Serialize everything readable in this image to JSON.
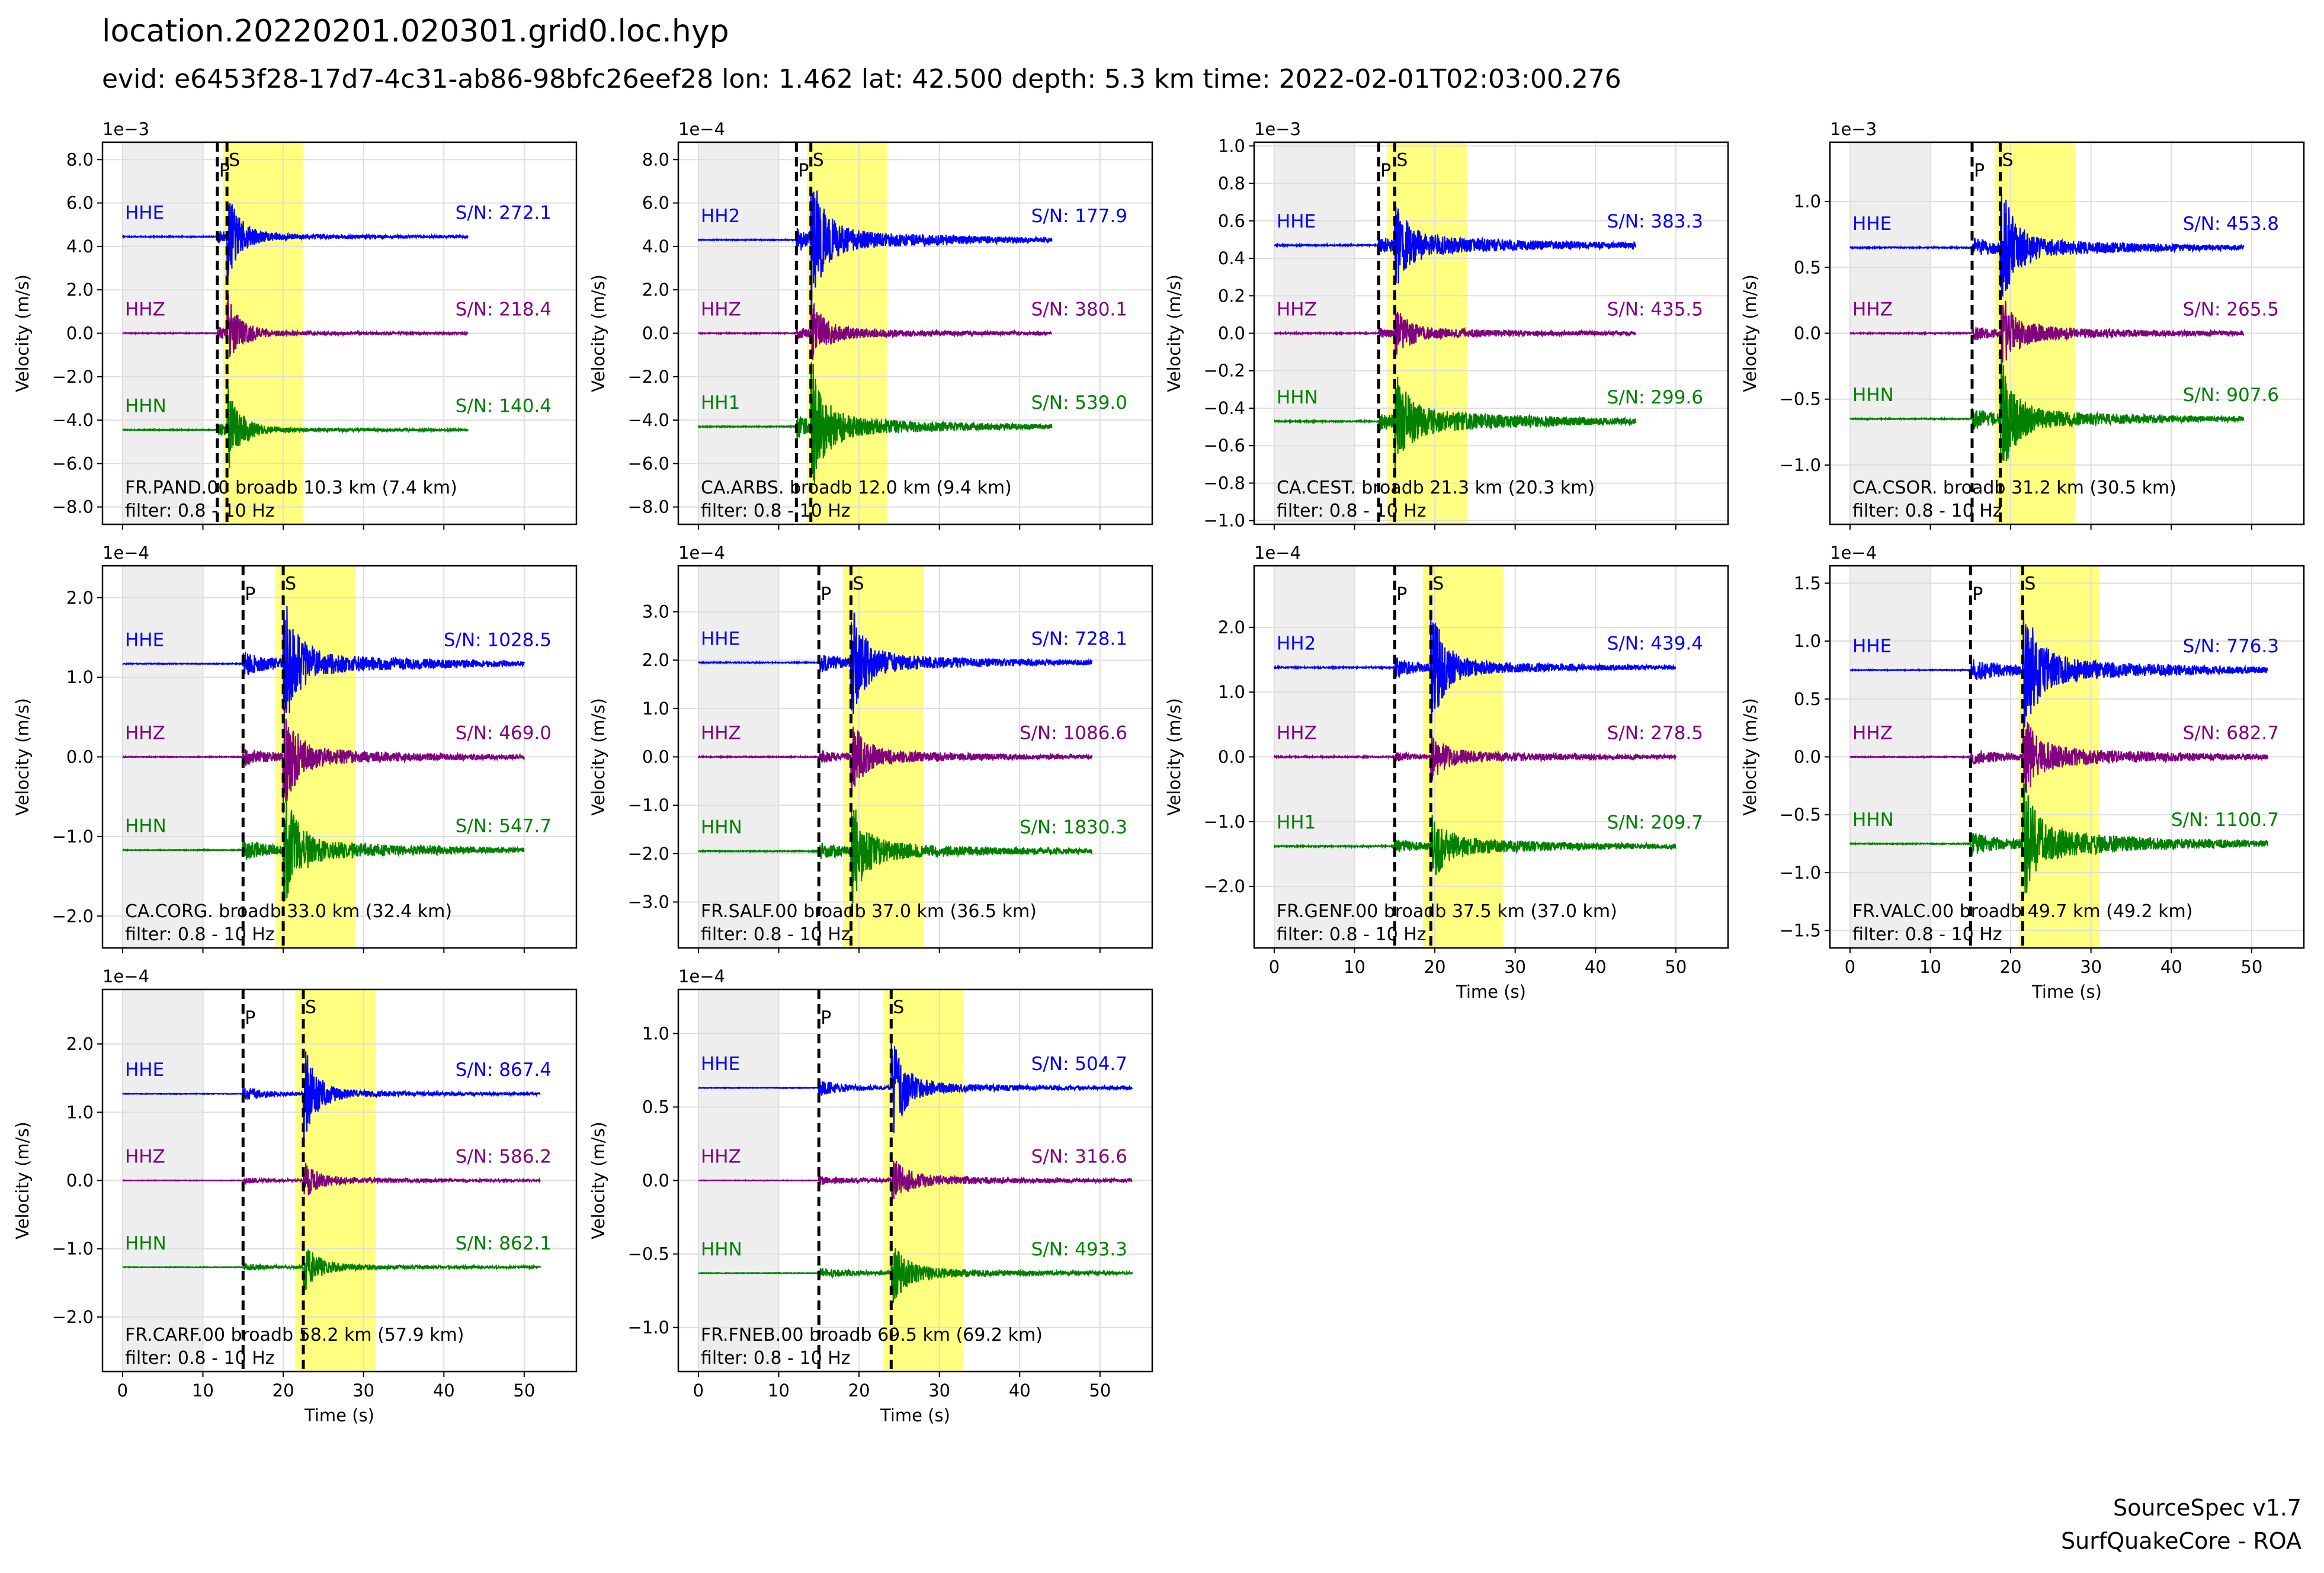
{
  "title": "location.20220201.020301.grid0.loc.hyp",
  "subtitle": "evid: e6453f28-17d7-4c31-ab86-98bfc26eef28 lon: 1.462 lat: 42.500 depth: 5.3 km time: 2022-02-01T02:03:00.276",
  "footer": {
    "line1": "SourceSpec v1.7",
    "line2": "SurfQuakeCore - ROA"
  },
  "colors": {
    "east": "#0000ff",
    "vertical": "#800080",
    "north": "#008000",
    "noise_window": "#eeeeee",
    "signal_window": "#ffff80",
    "grid": "#dddddd"
  },
  "chart_data": [
    {
      "type": "line",
      "station": "FR.PAND.00 broadb 10.3 km (7.4 km)",
      "filter": "filter: 0.8 - 10 Hz",
      "exponent": "1e−3",
      "ylabel": "Velocity (m/s)",
      "xlabel": "",
      "ylim": [
        -8.8,
        8.8
      ],
      "yticks": [
        8.0,
        6.0,
        4.0,
        2.0,
        0.0,
        -2.0,
        -4.0,
        -6.0,
        -8.0
      ],
      "yticklabels": [
        "8.0",
        "6.0",
        "4.0",
        "2.0",
        "0.0",
        "−2.0",
        "−4.0",
        "−6.0",
        "−8.0"
      ],
      "xlim": [
        -2.5,
        56.5
      ],
      "xticks": [
        0,
        10,
        20,
        30,
        40,
        50
      ],
      "show_xticklabels": false,
      "p_time": 11.8,
      "s_time": 13.0,
      "noise_window": [
        0,
        10
      ],
      "signal_window": [
        12.5,
        22.5
      ],
      "trace_end": 43,
      "traces": [
        {
          "channel": "HHE",
          "sn": "S/N: 272.1",
          "offset": 4.45,
          "amp": 2.0,
          "coda": 0.15,
          "noise": 0.02
        },
        {
          "channel": "HHZ",
          "sn": "S/N: 218.4",
          "offset": 0.0,
          "amp": 1.9,
          "coda": 0.12,
          "noise": 0.02
        },
        {
          "channel": "HHN",
          "sn": "S/N: 140.4",
          "offset": -4.45,
          "amp": 2.0,
          "coda": 0.12,
          "noise": 0.02
        }
      ]
    },
    {
      "type": "line",
      "station": "CA.ARBS. broadb 12.0 km (9.4 km)",
      "filter": "filter: 0.8 - 10 Hz",
      "exponent": "1e−4",
      "ylabel": "Velocity (m/s)",
      "xlabel": "",
      "ylim": [
        -8.8,
        8.8
      ],
      "yticks": [
        8.0,
        6.0,
        4.0,
        2.0,
        0.0,
        -2.0,
        -4.0,
        -6.0,
        -8.0
      ],
      "yticklabels": [
        "8.0",
        "6.0",
        "4.0",
        "2.0",
        "0.0",
        "−2.0",
        "−4.0",
        "−6.0",
        "−8.0"
      ],
      "xlim": [
        -2.5,
        56.5
      ],
      "xticks": [
        0,
        10,
        20,
        30,
        40,
        50
      ],
      "show_xticklabels": false,
      "p_time": 12.2,
      "s_time": 14.0,
      "noise_window": [
        0,
        10
      ],
      "signal_window": [
        13.5,
        23.5
      ],
      "trace_end": 44,
      "traces": [
        {
          "channel": "HH2",
          "sn": "S/N: 177.9",
          "offset": 4.3,
          "amp": 2.9,
          "coda": 0.5,
          "noise": 0.02
        },
        {
          "channel": "HHZ",
          "sn": "S/N: 380.1",
          "offset": 0.0,
          "amp": 1.4,
          "coda": 0.25,
          "noise": 0.02
        },
        {
          "channel": "HH1",
          "sn": "S/N: 539.0",
          "offset": -4.3,
          "amp": 2.9,
          "coda": 0.5,
          "noise": 0.02
        }
      ]
    },
    {
      "type": "line",
      "station": "CA.CEST. broadb 21.3 km (20.3 km)",
      "filter": "filter: 0.8 - 10 Hz",
      "exponent": "1e−3",
      "ylabel": "Velocity (m/s)",
      "xlabel": "",
      "ylim": [
        -1.02,
        1.02
      ],
      "yticks": [
        1.0,
        0.8,
        0.6,
        0.4,
        0.2,
        0.0,
        -0.2,
        -0.4,
        -0.6,
        -0.8,
        -1.0
      ],
      "yticklabels": [
        "1.0",
        "0.8",
        "0.6",
        "0.4",
        "0.2",
        "0.0",
        "−0.2",
        "−0.4",
        "−0.6",
        "−0.8",
        "−1.0"
      ],
      "xlim": [
        -2.5,
        56.5
      ],
      "xticks": [
        0,
        10,
        20,
        30,
        40,
        50
      ],
      "show_xticklabels": false,
      "p_time": 13.0,
      "s_time": 15.0,
      "noise_window": [
        0,
        10
      ],
      "signal_window": [
        14.0,
        24.0
      ],
      "trace_end": 45,
      "traces": [
        {
          "channel": "HHE",
          "sn": "S/N: 383.3",
          "offset": 0.47,
          "amp": 0.2,
          "coda": 0.06,
          "noise": 0.003
        },
        {
          "channel": "HHZ",
          "sn": "S/N: 435.5",
          "offset": 0.0,
          "amp": 0.12,
          "coda": 0.03,
          "noise": 0.003
        },
        {
          "channel": "HHN",
          "sn": "S/N: 299.6",
          "offset": -0.47,
          "amp": 0.22,
          "coda": 0.07,
          "noise": 0.003
        }
      ]
    },
    {
      "type": "line",
      "station": "CA.CSOR. broadb 31.2 km (30.5 km)",
      "filter": "filter: 0.8 - 10 Hz",
      "exponent": "1e−3",
      "ylabel": "Velocity (m/s)",
      "xlabel": "",
      "ylim": [
        -1.45,
        1.45
      ],
      "yticks": [
        1.0,
        0.5,
        0.0,
        -0.5,
        -1.0
      ],
      "yticklabels": [
        "1.0",
        "0.5",
        "0.0",
        "−0.5",
        "−1.0"
      ],
      "xlim": [
        -2.5,
        56.5
      ],
      "xticks": [
        0,
        10,
        20,
        30,
        40,
        50
      ],
      "show_xticklabels": false,
      "p_time": 15.2,
      "s_time": 18.7,
      "noise_window": [
        0,
        10
      ],
      "signal_window": [
        18.0,
        28.0
      ],
      "trace_end": 49,
      "traces": [
        {
          "channel": "HHE",
          "sn": "S/N: 453.8",
          "offset": 0.65,
          "amp": 0.45,
          "coda": 0.08,
          "noise": 0.004
        },
        {
          "channel": "HHZ",
          "sn": "S/N: 265.5",
          "offset": 0.0,
          "amp": 0.3,
          "coda": 0.06,
          "noise": 0.004
        },
        {
          "channel": "HHN",
          "sn": "S/N: 907.6",
          "offset": -0.65,
          "amp": 0.45,
          "coda": 0.08,
          "noise": 0.004
        }
      ]
    },
    {
      "type": "line",
      "station": "CA.CORG. broadb 33.0 km (32.4 km)",
      "filter": "filter: 0.8 - 10 Hz",
      "exponent": "1e−4",
      "ylabel": "Velocity (m/s)",
      "xlabel": "",
      "ylim": [
        -2.4,
        2.4
      ],
      "yticks": [
        2.0,
        1.0,
        0.0,
        -1.0,
        -2.0
      ],
      "yticklabels": [
        "2.0",
        "1.0",
        "0.0",
        "−1.0",
        "−2.0"
      ],
      "xlim": [
        -2.5,
        56.5
      ],
      "xticks": [
        0,
        10,
        20,
        30,
        40,
        50
      ],
      "show_xticklabels": false,
      "p_time": 15.0,
      "s_time": 20.0,
      "noise_window": [
        0,
        10
      ],
      "signal_window": [
        19.0,
        29.0
      ],
      "trace_end": 50,
      "traces": [
        {
          "channel": "HHE",
          "sn": "S/N: 1028.5",
          "offset": 1.17,
          "amp": 0.8,
          "coda": 0.15,
          "noise": 0.005
        },
        {
          "channel": "HHZ",
          "sn": "S/N: 469.0",
          "offset": 0.0,
          "amp": 0.6,
          "coda": 0.12,
          "noise": 0.005
        },
        {
          "channel": "HHN",
          "sn": "S/N: 547.7",
          "offset": -1.17,
          "amp": 0.7,
          "coda": 0.14,
          "noise": 0.005
        }
      ]
    },
    {
      "type": "line",
      "station": "FR.SALF.00 broadb 37.0 km (36.5 km)",
      "filter": "filter: 0.8 - 10 Hz",
      "exponent": "1e−4",
      "ylabel": "Velocity (m/s)",
      "xlabel": "",
      "ylim": [
        -3.95,
        3.95
      ],
      "yticks": [
        3.0,
        2.0,
        1.0,
        0.0,
        -1.0,
        -2.0,
        -3.0
      ],
      "yticklabels": [
        "3.0",
        "2.0",
        "1.0",
        "0.0",
        "−1.0",
        "−2.0",
        "−3.0"
      ],
      "xlim": [
        -2.5,
        56.5
      ],
      "xticks": [
        0,
        10,
        20,
        30,
        40,
        50
      ],
      "show_xticklabels": false,
      "p_time": 15.0,
      "s_time": 19.0,
      "noise_window": [
        0,
        10
      ],
      "signal_window": [
        18.0,
        28.0
      ],
      "trace_end": 49,
      "traces": [
        {
          "channel": "HHE",
          "sn": "S/N: 728.1",
          "offset": 1.95,
          "amp": 1.1,
          "coda": 0.2,
          "noise": 0.01
        },
        {
          "channel": "HHZ",
          "sn": "S/N: 1086.6",
          "offset": 0.0,
          "amp": 0.7,
          "coda": 0.15,
          "noise": 0.01
        },
        {
          "channel": "HHN",
          "sn": "S/N: 1830.3",
          "offset": -1.95,
          "amp": 1.0,
          "coda": 0.2,
          "noise": 0.01
        }
      ]
    },
    {
      "type": "line",
      "station": "FR.GENF.00 broadb 37.5 km (37.0 km)",
      "filter": "filter: 0.8 - 10 Hz",
      "exponent": "1e−4",
      "ylabel": "Velocity (m/s)",
      "xlabel": "Time (s)",
      "ylim": [
        -2.95,
        2.95
      ],
      "yticks": [
        2.0,
        1.0,
        0.0,
        -1.0,
        -2.0
      ],
      "yticklabels": [
        "2.0",
        "1.0",
        "0.0",
        "−1.0",
        "−2.0"
      ],
      "xlim": [
        -2.5,
        56.5
      ],
      "xticks": [
        0,
        10,
        20,
        30,
        40,
        50
      ],
      "show_xticklabels": true,
      "xticklabels": [
        "0",
        "10",
        "20",
        "30",
        "40",
        "50"
      ],
      "p_time": 15.0,
      "s_time": 19.5,
      "noise_window": [
        0,
        10
      ],
      "signal_window": [
        18.5,
        28.5
      ],
      "trace_end": 50,
      "traces": [
        {
          "channel": "HH2",
          "sn": "S/N: 439.4",
          "offset": 1.38,
          "amp": 0.9,
          "coda": 0.12,
          "noise": 0.01
        },
        {
          "channel": "HHZ",
          "sn": "S/N: 278.5",
          "offset": 0.0,
          "amp": 0.3,
          "coda": 0.1,
          "noise": 0.01
        },
        {
          "channel": "HH1",
          "sn": "S/N: 209.7",
          "offset": -1.38,
          "amp": 0.5,
          "coda": 0.14,
          "noise": 0.01
        }
      ]
    },
    {
      "type": "line",
      "station": "FR.VALC.00 broadb 49.7 km (49.2 km)",
      "filter": "filter: 0.8 - 10 Hz",
      "exponent": "1e−4",
      "ylabel": "Velocity (m/s)",
      "xlabel": "Time (s)",
      "ylim": [
        -1.65,
        1.65
      ],
      "yticks": [
        1.5,
        1.0,
        0.5,
        0.0,
        -0.5,
        -1.0,
        -1.5
      ],
      "yticklabels": [
        "1.5",
        "1.0",
        "0.5",
        "0.0",
        "−0.5",
        "−1.0",
        "−1.5"
      ],
      "xlim": [
        -2.5,
        56.5
      ],
      "xticks": [
        0,
        10,
        20,
        30,
        40,
        50
      ],
      "show_xticklabels": true,
      "xticklabels": [
        "0",
        "10",
        "20",
        "30",
        "40",
        "50"
      ],
      "p_time": 15.0,
      "s_time": 21.5,
      "noise_window": [
        0,
        10
      ],
      "signal_window": [
        21.0,
        31.0
      ],
      "trace_end": 52,
      "traces": [
        {
          "channel": "HHE",
          "sn": "S/N: 776.3",
          "offset": 0.75,
          "amp": 0.6,
          "coda": 0.12,
          "noise": 0.004
        },
        {
          "channel": "HHZ",
          "sn": "S/N: 682.7",
          "offset": 0.0,
          "amp": 0.3,
          "coda": 0.1,
          "noise": 0.004
        },
        {
          "channel": "HHN",
          "sn": "S/N: 1100.7",
          "offset": -0.75,
          "amp": 0.45,
          "coda": 0.13,
          "noise": 0.004
        }
      ]
    },
    {
      "type": "line",
      "station": "FR.CARF.00 broadb 58.2 km (57.9 km)",
      "filter": "filter: 0.8 - 10 Hz",
      "exponent": "1e−4",
      "ylabel": "Velocity (m/s)",
      "xlabel": "Time (s)",
      "ylim": [
        -2.8,
        2.8
      ],
      "yticks": [
        2.0,
        1.0,
        0.0,
        -1.0,
        -2.0
      ],
      "yticklabels": [
        "2.0",
        "1.0",
        "0.0",
        "−1.0",
        "−2.0"
      ],
      "xlim": [
        -2.5,
        56.5
      ],
      "xticks": [
        0,
        10,
        20,
        30,
        40,
        50
      ],
      "show_xticklabels": true,
      "xticklabels": [
        "0",
        "10",
        "20",
        "30",
        "40",
        "50"
      ],
      "p_time": 15.0,
      "s_time": 22.5,
      "noise_window": [
        0,
        10
      ],
      "signal_window": [
        21.5,
        31.5
      ],
      "trace_end": 52,
      "traces": [
        {
          "channel": "HHE",
          "sn": "S/N: 867.4",
          "offset": 1.27,
          "amp": 0.7,
          "coda": 0.06,
          "noise": 0.004
        },
        {
          "channel": "HHZ",
          "sn": "S/N: 586.2",
          "offset": 0.0,
          "amp": 0.25,
          "coda": 0.05,
          "noise": 0.004
        },
        {
          "channel": "HHN",
          "sn": "S/N: 862.1",
          "offset": -1.27,
          "amp": 0.35,
          "coda": 0.05,
          "noise": 0.004
        }
      ]
    },
    {
      "type": "line",
      "station": "FR.FNEB.00 broadb 69.5 km (69.2 km)",
      "filter": "filter: 0.8 - 10 Hz",
      "exponent": "1e−4",
      "ylabel": "Velocity (m/s)",
      "xlabel": "Time (s)",
      "ylim": [
        -1.3,
        1.3
      ],
      "yticks": [
        1.0,
        0.5,
        0.0,
        -0.5,
        -1.0
      ],
      "yticklabels": [
        "1.0",
        "0.5",
        "0.0",
        "−0.5",
        "−1.0"
      ],
      "xlim": [
        -2.5,
        56.5
      ],
      "xticks": [
        0,
        10,
        20,
        30,
        40,
        50
      ],
      "show_xticklabels": true,
      "xticklabels": [
        "0",
        "10",
        "20",
        "30",
        "40",
        "50"
      ],
      "p_time": 15.0,
      "s_time": 24.0,
      "noise_window": [
        0,
        10
      ],
      "signal_window": [
        23.0,
        33.0
      ],
      "trace_end": 54,
      "traces": [
        {
          "channel": "HHE",
          "sn": "S/N: 504.7",
          "offset": 0.63,
          "amp": 0.35,
          "coda": 0.04,
          "noise": 0.002
        },
        {
          "channel": "HHZ",
          "sn": "S/N: 316.6",
          "offset": 0.0,
          "amp": 0.15,
          "coda": 0.04,
          "noise": 0.002
        },
        {
          "channel": "HHN",
          "sn": "S/N: 493.3",
          "offset": -0.63,
          "amp": 0.2,
          "coda": 0.04,
          "noise": 0.002
        }
      ]
    }
  ]
}
